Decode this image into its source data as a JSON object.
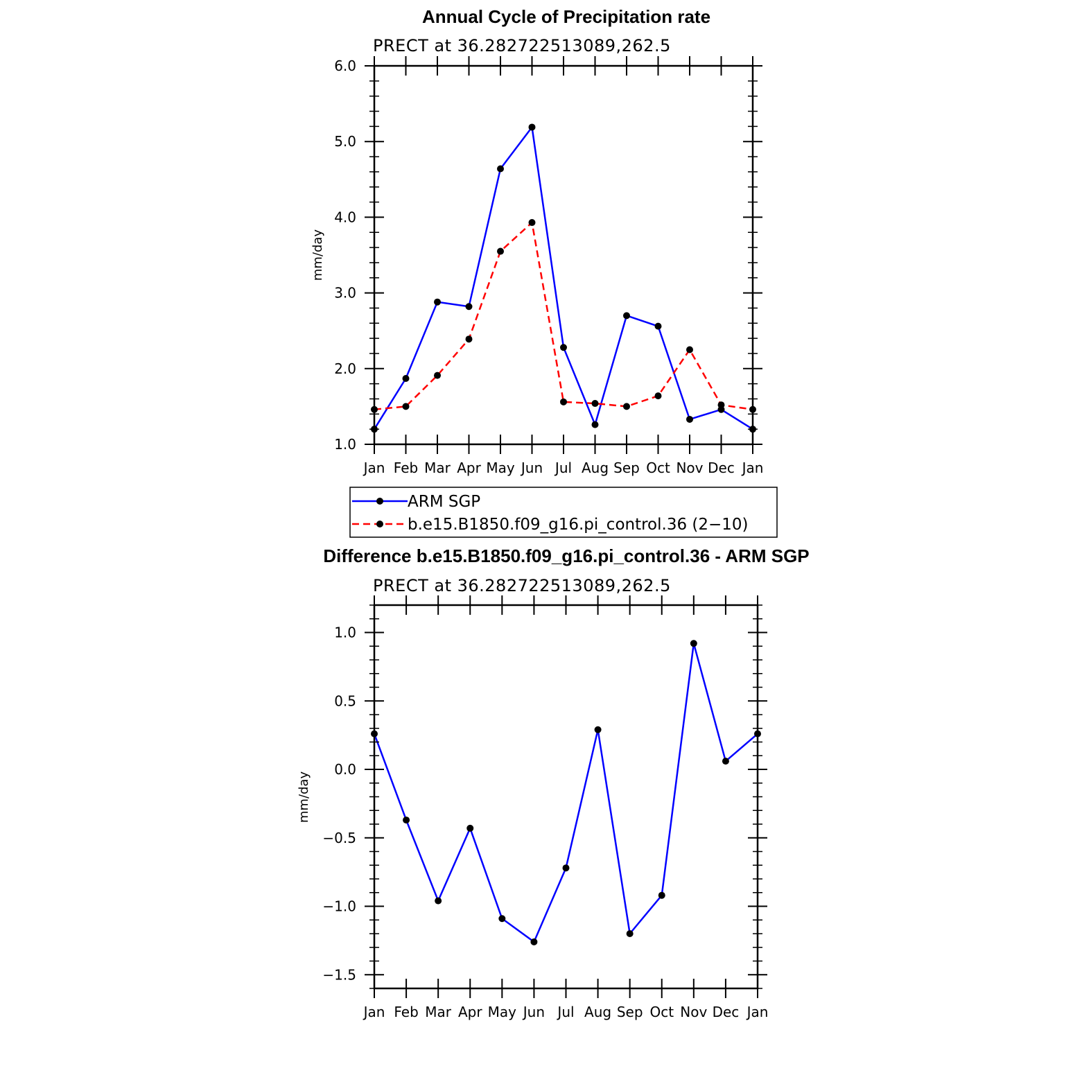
{
  "chart_data": [
    {
      "type": "line",
      "title": "Annual Cycle of Precipitation rate",
      "subtitle": "PRECT at 36.282722513089,262.5",
      "ylabel": "mm/day",
      "ylim": [
        1.0,
        6.0
      ],
      "yticks": [
        "1.0",
        "2.0",
        "3.0",
        "4.0",
        "5.0",
        "6.0"
      ],
      "categories": [
        "Jan",
        "Feb",
        "Mar",
        "Apr",
        "May",
        "Jun",
        "Jul",
        "Aug",
        "Sep",
        "Oct",
        "Nov",
        "Dec",
        "Jan"
      ],
      "series": [
        {
          "name": "ARM SGP",
          "color": "#0000ff",
          "dash": "solid",
          "values": [
            1.2,
            1.87,
            2.88,
            2.82,
            4.64,
            5.19,
            2.28,
            1.26,
            2.7,
            2.56,
            1.33,
            1.46,
            1.2
          ]
        },
        {
          "name": "b.e15.B1850.f09_g16.pi_control.36 (2−10)",
          "color": "#ff0000",
          "dash": "dashed",
          "values": [
            1.46,
            1.5,
            1.91,
            2.39,
            3.55,
            3.93,
            1.56,
            1.54,
            1.5,
            1.64,
            2.25,
            1.52,
            1.46
          ]
        }
      ],
      "legend": "bottom"
    },
    {
      "type": "line",
      "title": "Difference b.e15.B1850.f09_g16.pi_control.36 - ARM SGP",
      "subtitle": "PRECT at 36.282722513089,262.5",
      "ylabel": "mm/day",
      "ylim": [
        -1.6,
        1.2
      ],
      "yticks": [
        "−1.5",
        "−1.0",
        "−0.5",
        "0.0",
        "0.5",
        "1.0"
      ],
      "categories": [
        "Jan",
        "Feb",
        "Mar",
        "Apr",
        "May",
        "Jun",
        "Jul",
        "Aug",
        "Sep",
        "Oct",
        "Nov",
        "Dec",
        "Jan"
      ],
      "series": [
        {
          "color": "#0000ff",
          "dash": "solid",
          "values": [
            0.26,
            -0.37,
            -0.96,
            -0.43,
            -1.09,
            -1.26,
            -0.72,
            0.29,
            -1.2,
            -0.92,
            0.92,
            0.06,
            0.26
          ]
        }
      ]
    }
  ]
}
